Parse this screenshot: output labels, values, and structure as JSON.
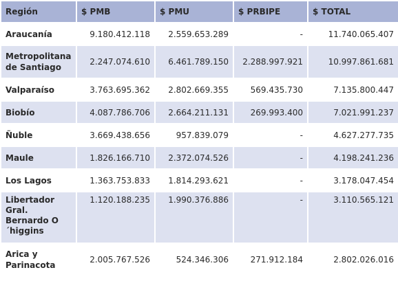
{
  "table": {
    "headers": [
      "Región",
      "$ PMB",
      "$ PMU",
      "$ PRBIPE",
      "$ TOTAL"
    ],
    "rows": [
      {
        "region": "Araucanía",
        "pmb": "9.180.412.118",
        "pmu": "2.559.653.289",
        "prbipe": "-",
        "total": "11.740.065.407"
      },
      {
        "region": "Metropolitana de Santiago",
        "pmb": "2.247.074.610",
        "pmu": "6.461.789.150",
        "prbipe": "2.288.997.921",
        "total": "10.997.861.681"
      },
      {
        "region": "Valparaíso",
        "pmb": "3.763.695.362",
        "pmu": "2.802.669.355",
        "prbipe": "569.435.730",
        "total": "7.135.800.447"
      },
      {
        "region": "Biobío",
        "pmb": "4.087.786.706",
        "pmu": "2.664.211.131",
        "prbipe": "269.993.400",
        "total": "7.021.991.237"
      },
      {
        "region": "Ñuble",
        "pmb": "3.669.438.656",
        "pmu": "957.839.079",
        "prbipe": "-",
        "total": "4.627.277.735"
      },
      {
        "region": "Maule",
        "pmb": "1.826.166.710",
        "pmu": "2.372.074.526",
        "prbipe": "-",
        "total": "4.198.241.236"
      },
      {
        "region": "Los Lagos",
        "pmb": "1.363.753.833",
        "pmu": "1.814.293.621",
        "prbipe": "-",
        "total": "3.178.047.454"
      },
      {
        "region": "Libertador Gral. Bernardo O´higgins",
        "pmb": "1.120.188.235",
        "pmu": "1.990.376.886",
        "prbipe": "-",
        "total": "3.110.565.121"
      },
      {
        "region": "Arica y Parinacota",
        "pmb": "2.005.767.526",
        "pmu": "524.346.306",
        "prbipe": "271.912.184",
        "total": "2.802.026.016"
      }
    ]
  }
}
